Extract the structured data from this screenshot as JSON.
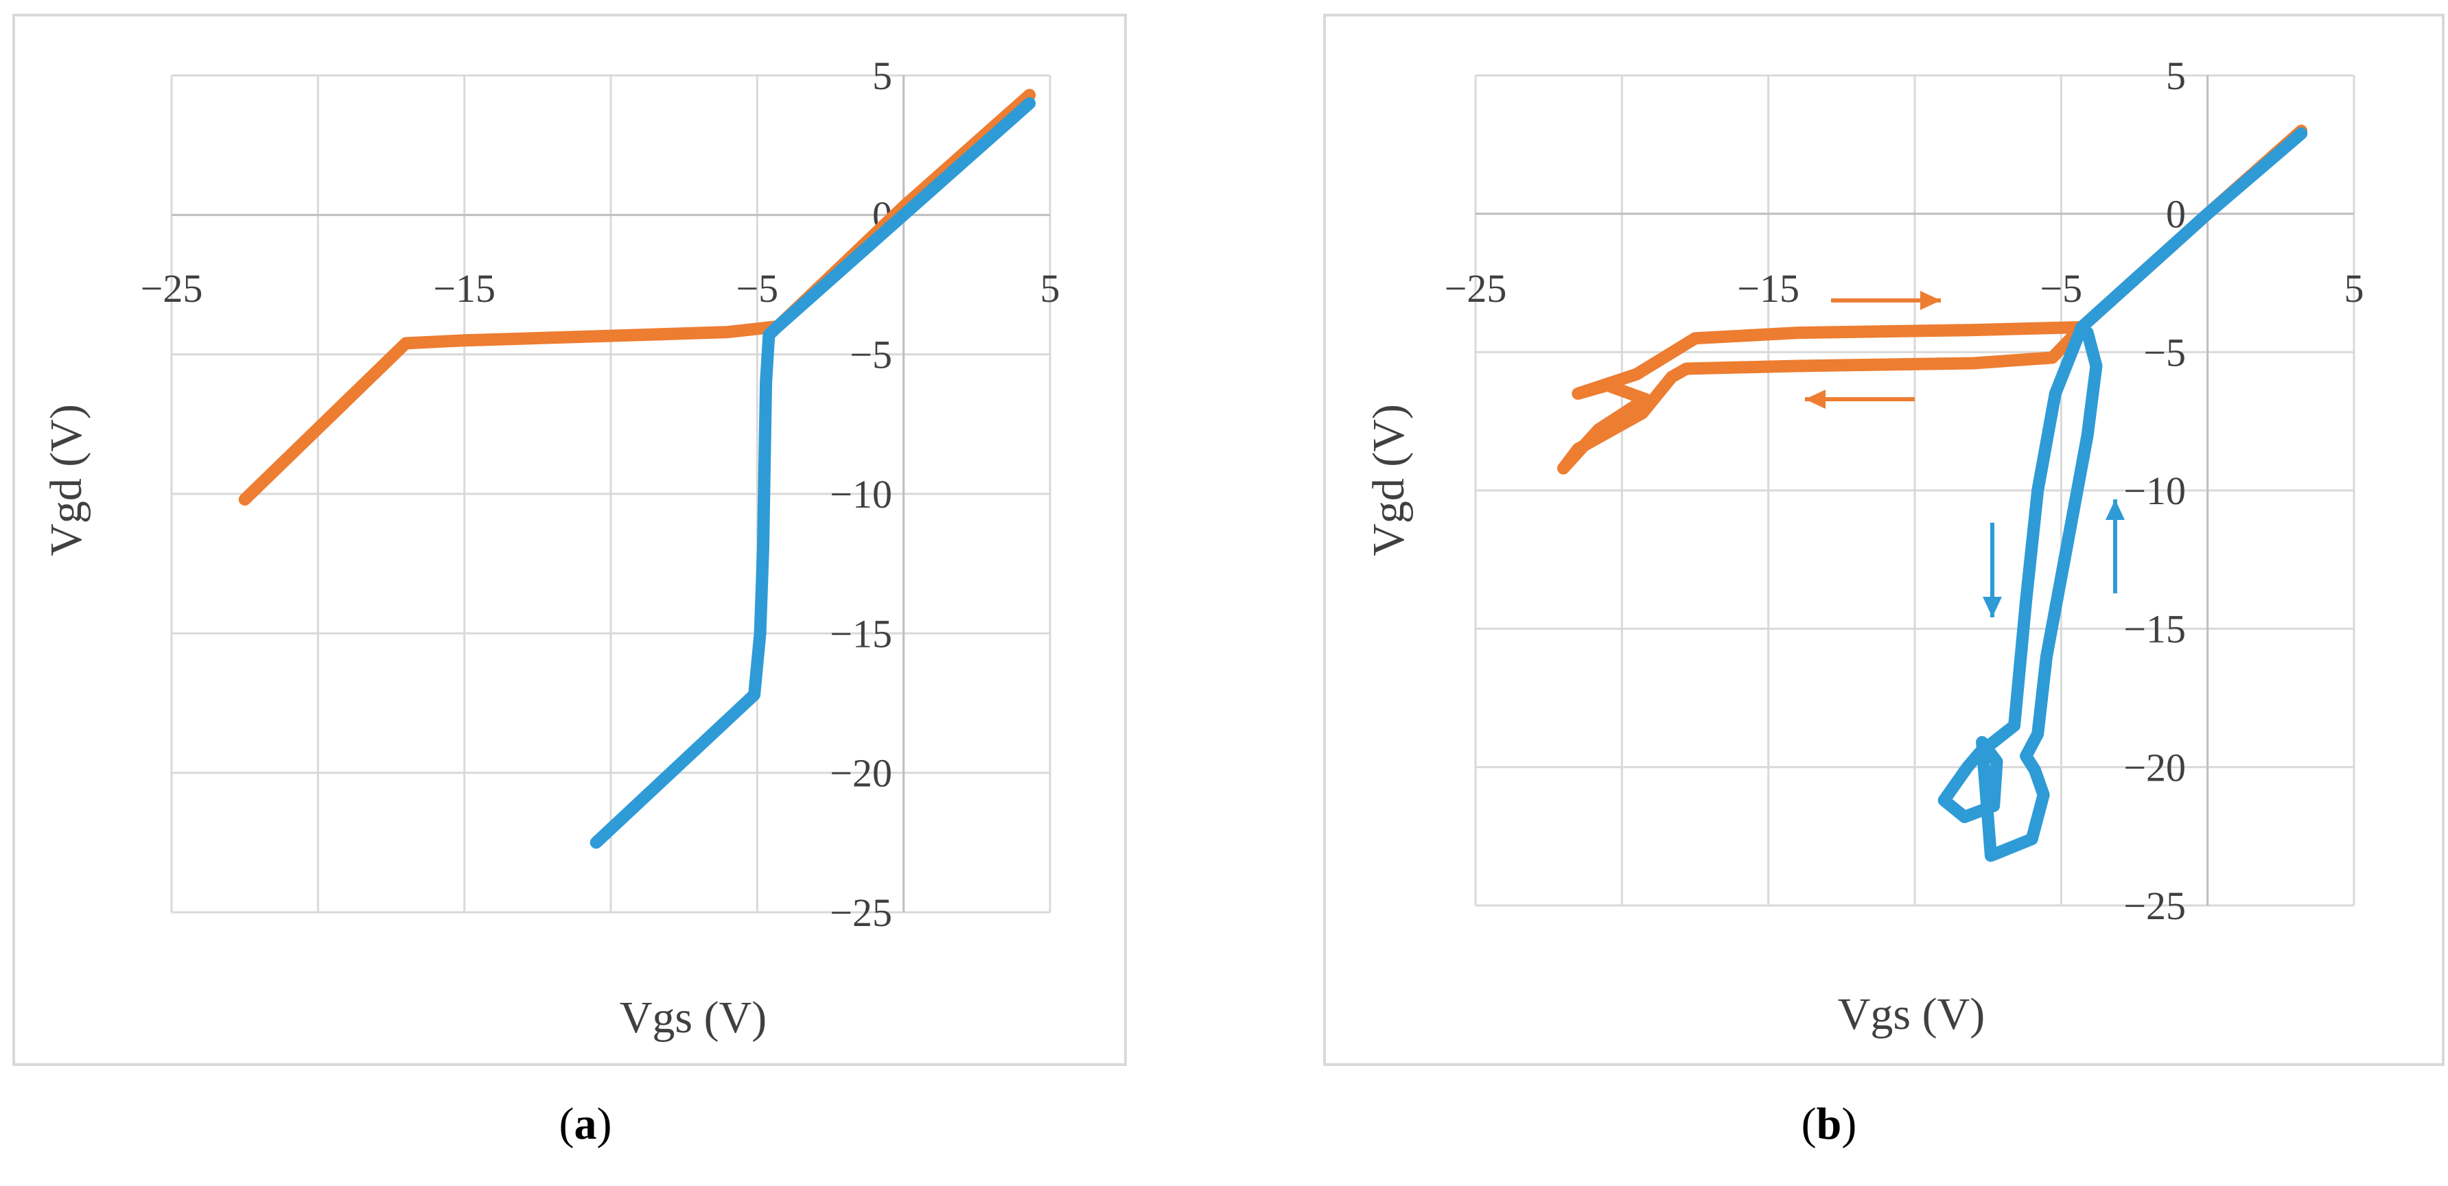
{
  "chart_data": [
    {
      "type": "line",
      "panel_label": "a",
      "xlabel": "Vgs (V)",
      "ylabel": "Vgd (V)",
      "xlim": [
        -25,
        5
      ],
      "ylim": [
        -25,
        5
      ],
      "x_ticks": [
        "−25",
        "−15",
        "−5",
        "5"
      ],
      "y_ticks": [
        "5",
        "0",
        "−5",
        "−10",
        "−15",
        "−20",
        "−25"
      ],
      "grid": true,
      "series": [
        {
          "color": "#ED7D31",
          "points": [
            [
              -22.5,
              -10.2
            ],
            [
              -17,
              -4.6
            ],
            [
              -15,
              -4.5
            ],
            [
              -12,
              -4.4
            ],
            [
              -9,
              -4.3
            ],
            [
              -6,
              -4.2
            ],
            [
              -4.3,
              -4.0
            ],
            [
              0,
              0.3
            ],
            [
              4.3,
              4.3
            ]
          ]
        },
        {
          "color": "#2E9BD6",
          "points": [
            [
              -10.5,
              -22.5
            ],
            [
              -5.1,
              -17.2
            ],
            [
              -4.9,
              -15
            ],
            [
              -4.8,
              -12
            ],
            [
              -4.75,
              -9
            ],
            [
              -4.7,
              -6
            ],
            [
              -4.6,
              -4.3
            ],
            [
              -4.3,
              -4.0
            ],
            [
              0,
              0
            ],
            [
              4.3,
              4.0
            ]
          ]
        }
      ]
    },
    {
      "type": "line",
      "panel_label": "b",
      "xlabel": "Vgs (V)",
      "ylabel": "Vgd (V)",
      "xlim": [
        -25,
        5
      ],
      "ylim": [
        -25,
        5
      ],
      "x_ticks": [
        "−25",
        "−15",
        "−5",
        "5"
      ],
      "y_ticks": [
        "5",
        "0",
        "−5",
        "−10",
        "−15",
        "−20",
        "−25"
      ],
      "grid": true,
      "series": [
        {
          "color": "#ED7D31",
          "points": [
            [
              3.2,
              3.0
            ],
            [
              0,
              0
            ],
            [
              -4.3,
              -4.1
            ],
            [
              -8,
              -4.2
            ],
            [
              -14,
              -4.3
            ],
            [
              -17.5,
              -4.5
            ],
            [
              -19.5,
              -5.8
            ],
            [
              -21.5,
              -6.5
            ],
            [
              -20.5,
              -6.2
            ],
            [
              -19.2,
              -6.7
            ],
            [
              -20.8,
              -7.8
            ],
            [
              -22,
              -9.2
            ],
            [
              -21.5,
              -8.5
            ],
            [
              -19.3,
              -7.2
            ],
            [
              -18.3,
              -5.9
            ],
            [
              -17.8,
              -5.6
            ],
            [
              -14,
              -5.5
            ],
            [
              -8,
              -5.4
            ],
            [
              -5.3,
              -5.2
            ],
            [
              -4.3,
              -4.1
            ]
          ]
        },
        {
          "color": "#2E9BD6",
          "points": [
            [
              3.2,
              2.9
            ],
            [
              0,
              0
            ],
            [
              -4.3,
              -4.1
            ],
            [
              -5.2,
              -6.5
            ],
            [
              -5.8,
              -10
            ],
            [
              -6.2,
              -14
            ],
            [
              -6.6,
              -18.5
            ],
            [
              -7.8,
              -19.5
            ],
            [
              -8.2,
              -20
            ],
            [
              -9,
              -21.2
            ],
            [
              -8.3,
              -21.8
            ],
            [
              -7.3,
              -21.4
            ],
            [
              -7.2,
              -19.8
            ],
            [
              -7.7,
              -19.1
            ],
            [
              -7.6,
              -20.5
            ],
            [
              -7.4,
              -23.2
            ],
            [
              -6.0,
              -22.6
            ],
            [
              -5.6,
              -21
            ],
            [
              -5.9,
              -20.1
            ],
            [
              -6.2,
              -19.6
            ],
            [
              -5.8,
              -18.8
            ],
            [
              -5.5,
              -16
            ],
            [
              -4.8,
              -12
            ],
            [
              -4.1,
              -8
            ],
            [
              -3.8,
              -5.5
            ],
            [
              -4.1,
              -4.3
            ]
          ]
        }
      ]
    }
  ]
}
